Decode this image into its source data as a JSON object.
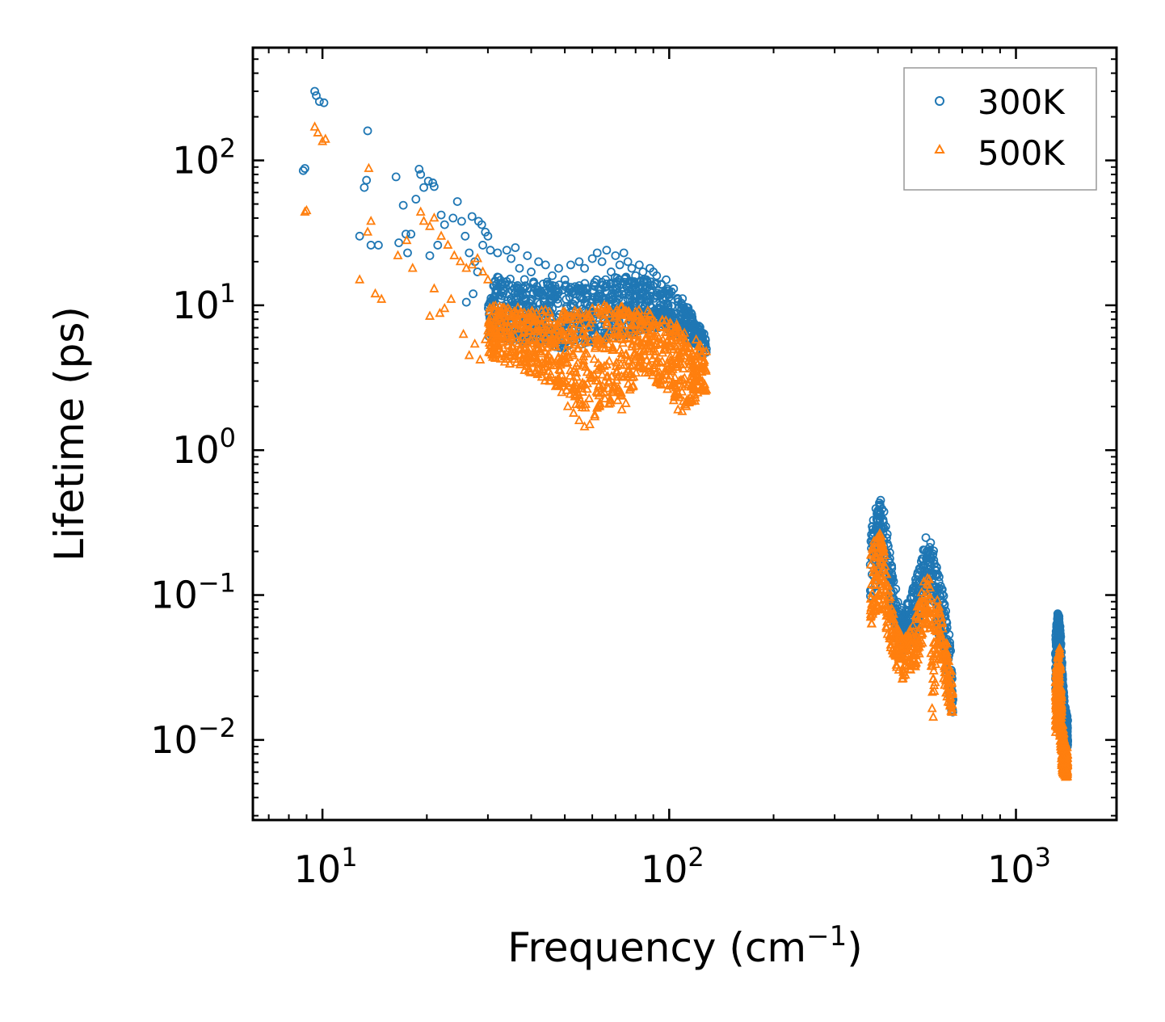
{
  "chart_data": {
    "type": "scatter",
    "title": "",
    "xlabel": "Frequency (cm",
    "xlabel_sup": "−1",
    "xlabel_end": ")",
    "ylabel": "Lifetime (ps)",
    "xscale": "log",
    "yscale": "log",
    "xlim": [
      6.3,
      1950
    ],
    "ylim": [
      0.0028,
      600
    ],
    "x_ticks": [
      {
        "value": 10,
        "base": "10",
        "exp": "1"
      },
      {
        "value": 100,
        "base": "10",
        "exp": "2"
      },
      {
        "value": 1000,
        "base": "10",
        "exp": "3"
      }
    ],
    "y_ticks": [
      {
        "value": 0.01,
        "base": "10",
        "exp": "−2"
      },
      {
        "value": 0.1,
        "base": "10",
        "exp": "−1"
      },
      {
        "value": 1,
        "base": "10",
        "exp": "0"
      },
      {
        "value": 10,
        "base": "10",
        "exp": "1"
      },
      {
        "value": 100,
        "base": "10",
        "exp": "2"
      }
    ],
    "legend_position": "top-right",
    "series": [
      {
        "name": "300K",
        "marker": "circle",
        "color": "#1f77b4",
        "points": [
          [
            9.5,
            300
          ],
          [
            9.6,
            280
          ],
          [
            9.8,
            255
          ],
          [
            10.1,
            250
          ],
          [
            8.8,
            85
          ],
          [
            8.9,
            88
          ],
          [
            13.5,
            160
          ],
          [
            13.2,
            65
          ],
          [
            13.4,
            73
          ],
          [
            12.8,
            30
          ],
          [
            13.8,
            26
          ],
          [
            14.5,
            26
          ],
          [
            16.3,
            77
          ],
          [
            17.1,
            49
          ],
          [
            17.4,
            31
          ],
          [
            18.0,
            31
          ],
          [
            16.6,
            27
          ],
          [
            17.6,
            23
          ],
          [
            18.6,
            54
          ],
          [
            19.0,
            87
          ],
          [
            19.2,
            80
          ],
          [
            19.6,
            65
          ],
          [
            20.2,
            72
          ],
          [
            20.8,
            70
          ],
          [
            21.0,
            66
          ],
          [
            20.4,
            22
          ],
          [
            21.5,
            26
          ],
          [
            22.0,
            42
          ],
          [
            22.5,
            36
          ],
          [
            23.8,
            40
          ],
          [
            24.5,
            52
          ],
          [
            25.2,
            38
          ],
          [
            25.8,
            30
          ],
          [
            27.0,
            41
          ],
          [
            28.2,
            38
          ],
          [
            28.8,
            36
          ],
          [
            29.5,
            32
          ],
          [
            30.0,
            30
          ],
          [
            29.0,
            26
          ],
          [
            30.5,
            24
          ],
          [
            26.5,
            23
          ],
          [
            27.5,
            20
          ],
          [
            28.0,
            17
          ],
          [
            26.0,
            10.5
          ],
          [
            27.2,
            12
          ],
          [
            32,
            23
          ],
          [
            34,
            24
          ],
          [
            35,
            21
          ],
          [
            36,
            25
          ],
          [
            37,
            18
          ],
          [
            39,
            22
          ],
          [
            40,
            17
          ],
          [
            42,
            20
          ],
          [
            44,
            19
          ],
          [
            46,
            16
          ],
          [
            48,
            18
          ],
          [
            50,
            15
          ],
          [
            52,
            19
          ],
          [
            55,
            20
          ],
          [
            57,
            18
          ],
          [
            60,
            21
          ],
          [
            62,
            23
          ],
          [
            64,
            20
          ],
          [
            66,
            24
          ],
          [
            68,
            17
          ],
          [
            70,
            22
          ],
          [
            72,
            19
          ],
          [
            74,
            23
          ],
          [
            76,
            20
          ],
          [
            78,
            18
          ],
          [
            80,
            16
          ],
          [
            82,
            19
          ],
          [
            84,
            17
          ],
          [
            86,
            15
          ],
          [
            88,
            18
          ],
          [
            90,
            17
          ],
          [
            92,
            16
          ],
          [
            95,
            14
          ],
          [
            98,
            15
          ],
          [
            100,
            12
          ],
          [
            103,
            13
          ],
          [
            106,
            11
          ],
          [
            109,
            10
          ],
          [
            112,
            9
          ],
          [
            115,
            8.5
          ],
          [
            118,
            7.5
          ],
          [
            121,
            6.5
          ],
          [
            124,
            6
          ],
          [
            126,
            5.5
          ],
          [
            128,
            5
          ],
          [
            33,
            14
          ],
          [
            38,
            13
          ],
          [
            43,
            12
          ],
          [
            47,
            13
          ],
          [
            53,
            12
          ],
          [
            58,
            13
          ],
          [
            63,
            12
          ],
          [
            69,
            11
          ],
          [
            75,
            12
          ],
          [
            82,
            11
          ],
          [
            88,
            10
          ],
          [
            94,
            10
          ],
          [
            101,
            9
          ],
          [
            108,
            8
          ],
          [
            116,
            7
          ]
        ]
      },
      {
        "name": "500K",
        "marker": "triangle",
        "color": "#ff7f0e",
        "points": [
          [
            9.5,
            170
          ],
          [
            9.7,
            155
          ],
          [
            10.0,
            135
          ],
          [
            10.2,
            140
          ],
          [
            8.9,
            44
          ],
          [
            9.0,
            45
          ],
          [
            13.6,
            88
          ],
          [
            13.8,
            38
          ],
          [
            13.5,
            32
          ],
          [
            14.2,
            12
          ],
          [
            14.8,
            11
          ],
          [
            12.8,
            15
          ],
          [
            16.5,
            22
          ],
          [
            17.5,
            28
          ],
          [
            18.2,
            18
          ],
          [
            19.2,
            44
          ],
          [
            19.6,
            38
          ],
          [
            20.4,
            35
          ],
          [
            21.0,
            40
          ],
          [
            22.0,
            30
          ],
          [
            23.0,
            26
          ],
          [
            24.0,
            22
          ],
          [
            25.0,
            20
          ],
          [
            26.0,
            18
          ],
          [
            27.0,
            19
          ],
          [
            28.0,
            21
          ],
          [
            29.0,
            17
          ],
          [
            30.0,
            15
          ],
          [
            21.0,
            13
          ],
          [
            20.4,
            8.4
          ],
          [
            21.8,
            8.8
          ],
          [
            22.5,
            9.5
          ],
          [
            23.5,
            11
          ],
          [
            25.5,
            6.3
          ],
          [
            26.5,
            4.5
          ],
          [
            27.5,
            5.4
          ],
          [
            28.5,
            4.2
          ],
          [
            29.5,
            5.8
          ],
          [
            30.5,
            4.7
          ],
          [
            31.5,
            6.0
          ],
          [
            33,
            7
          ],
          [
            35,
            6
          ],
          [
            37,
            5
          ],
          [
            39,
            5.5
          ],
          [
            41,
            4.5
          ],
          [
            43,
            4
          ],
          [
            45,
            3.5
          ],
          [
            47,
            3
          ],
          [
            49,
            2.5
          ],
          [
            51,
            2
          ],
          [
            53,
            1.8
          ],
          [
            55,
            1.6
          ],
          [
            57,
            1.45
          ],
          [
            59,
            1.5
          ],
          [
            61,
            1.7
          ],
          [
            63,
            2
          ],
          [
            65,
            2.5
          ],
          [
            67,
            3
          ],
          [
            69,
            2.7
          ],
          [
            71,
            2.2
          ],
          [
            73,
            1.9
          ],
          [
            75,
            2.1
          ],
          [
            77,
            2.6
          ],
          [
            79,
            3.2
          ],
          [
            81,
            3.8
          ],
          [
            83,
            4.2
          ],
          [
            85,
            4.5
          ],
          [
            88,
            4.8
          ],
          [
            91,
            4.5
          ],
          [
            94,
            4
          ],
          [
            97,
            3.5
          ],
          [
            100,
            2.8
          ],
          [
            103,
            2.2
          ],
          [
            106,
            1.9
          ],
          [
            109,
            1.85
          ],
          [
            112,
            2
          ],
          [
            115,
            2.3
          ],
          [
            118,
            2.6
          ],
          [
            121,
            2.8
          ],
          [
            125,
            2.7
          ],
          [
            128,
            2.6
          ],
          [
            40,
            8
          ],
          [
            45,
            7
          ],
          [
            50,
            9
          ],
          [
            55,
            8
          ],
          [
            60,
            9.5
          ],
          [
            65,
            10
          ],
          [
            70,
            9
          ],
          [
            75,
            8.5
          ],
          [
            80,
            9
          ],
          [
            85,
            8
          ],
          [
            90,
            7.5
          ],
          [
            95,
            7
          ],
          [
            100,
            6.5
          ],
          [
            105,
            6
          ],
          [
            110,
            5.5
          ],
          [
            115,
            5
          ],
          [
            120,
            4.5
          ],
          [
            125,
            4
          ]
        ]
      }
    ],
    "clusters": [
      {
        "series": "300K",
        "x_range": [
          380,
          660
        ],
        "band": [
          [
            380,
            0.09,
            0.32
          ],
          [
            395,
            0.12,
            0.42
          ],
          [
            405,
            0.15,
            0.48
          ],
          [
            415,
            0.13,
            0.4
          ],
          [
            425,
            0.09,
            0.28
          ],
          [
            440,
            0.07,
            0.15
          ],
          [
            455,
            0.05,
            0.1
          ],
          [
            470,
            0.04,
            0.08
          ],
          [
            490,
            0.04,
            0.09
          ],
          [
            510,
            0.05,
            0.12
          ],
          [
            530,
            0.07,
            0.18
          ],
          [
            550,
            0.1,
            0.25
          ],
          [
            565,
            0.1,
            0.24
          ],
          [
            580,
            0.08,
            0.2
          ],
          [
            600,
            0.05,
            0.14
          ],
          [
            620,
            0.04,
            0.1
          ],
          [
            640,
            0.02,
            0.06
          ],
          [
            655,
            0.015,
            0.03
          ]
        ]
      },
      {
        "series": "300K",
        "x_range": [
          1300,
          1410
        ],
        "band": [
          [
            1300,
            0.02,
            0.055
          ],
          [
            1320,
            0.025,
            0.075
          ],
          [
            1340,
            0.018,
            0.07
          ],
          [
            1360,
            0.012,
            0.03
          ],
          [
            1380,
            0.01,
            0.018
          ],
          [
            1400,
            0.009,
            0.015
          ]
        ]
      },
      {
        "series": "500K",
        "x_range": [
          380,
          660
        ],
        "band": [
          [
            380,
            0.05,
            0.2
          ],
          [
            395,
            0.07,
            0.26
          ],
          [
            405,
            0.08,
            0.28
          ],
          [
            415,
            0.07,
            0.22
          ],
          [
            425,
            0.05,
            0.14
          ],
          [
            440,
            0.04,
            0.08
          ],
          [
            455,
            0.03,
            0.06
          ],
          [
            470,
            0.026,
            0.05
          ],
          [
            490,
            0.03,
            0.055
          ],
          [
            510,
            0.03,
            0.07
          ],
          [
            530,
            0.04,
            0.1
          ],
          [
            550,
            0.06,
            0.15
          ],
          [
            565,
            0.055,
            0.13
          ],
          [
            575,
            0.009,
            0.06
          ],
          [
            590,
            0.04,
            0.1
          ],
          [
            610,
            0.03,
            0.07
          ],
          [
            630,
            0.02,
            0.05
          ],
          [
            650,
            0.015,
            0.03
          ]
        ]
      },
      {
        "series": "500K",
        "x_range": [
          1300,
          1410
        ],
        "band": [
          [
            1300,
            0.011,
            0.03
          ],
          [
            1320,
            0.012,
            0.038
          ],
          [
            1340,
            0.01,
            0.045
          ],
          [
            1360,
            0.006,
            0.015
          ],
          [
            1380,
            0.0055,
            0.01
          ],
          [
            1400,
            0.0055,
            0.009
          ]
        ]
      }
    ]
  }
}
